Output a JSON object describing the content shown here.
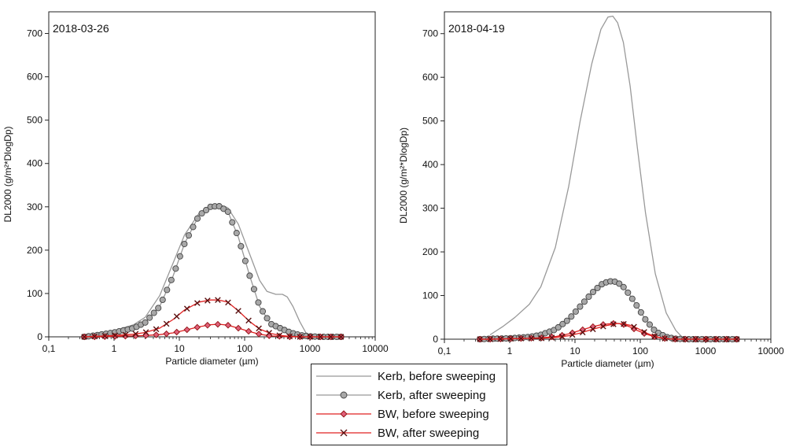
{
  "chart_data": [
    {
      "type": "line",
      "panel_label": "2018-03-26",
      "xlabel": "Particle diameter (µm)",
      "ylabel": "DL2000 (g/m²*DlogDp)",
      "xscale": "log",
      "xlim": [
        0.1,
        10000
      ],
      "ylim": [
        0,
        750
      ],
      "x_ticks": [
        "0,1",
        "1",
        "10",
        "100",
        "1000",
        "10000"
      ],
      "y_ticks": [
        "0",
        "100",
        "200",
        "300",
        "400",
        "500",
        "600",
        "700"
      ],
      "series": [
        {
          "name": "Kerb, before sweeping",
          "x": [
            0.35,
            0.5,
            1,
            2,
            3,
            5,
            8,
            12,
            20,
            30,
            40,
            55,
            80,
            120,
            170,
            220,
            300,
            380,
            450,
            550,
            700,
            900,
            1000,
            1200
          ],
          "y": [
            0,
            5,
            14,
            28,
            45,
            95,
            170,
            235,
            285,
            302,
            305,
            298,
            260,
            190,
            130,
            105,
            98,
            98,
            92,
            70,
            35,
            5,
            0,
            0
          ]
        },
        {
          "name": "Kerb, after sweeping",
          "x": [
            0.35,
            0.5,
            1,
            2,
            3,
            5,
            8,
            12,
            20,
            30,
            40,
            55,
            80,
            120,
            170,
            250,
            350,
            500,
            700,
            1000,
            1500,
            2000,
            3000
          ],
          "y": [
            0,
            3,
            10,
            20,
            33,
            70,
            140,
            215,
            280,
            300,
            302,
            290,
            230,
            140,
            70,
            30,
            20,
            10,
            4,
            1,
            0,
            0,
            0
          ]
        },
        {
          "name": "BW, before sweeping",
          "x": [
            0.35,
            0.5,
            1,
            2,
            3,
            5,
            8,
            12,
            20,
            30,
            40,
            55,
            80,
            120,
            170,
            250,
            350,
            500,
            700,
            1000,
            1500,
            2000,
            3000
          ],
          "y": [
            0,
            0,
            1,
            2,
            3,
            5,
            9,
            15,
            23,
            28,
            29,
            27,
            20,
            12,
            6,
            2,
            1,
            0,
            0,
            0,
            0,
            0,
            0
          ]
        },
        {
          "name": "BW, after sweeping",
          "x": [
            0.35,
            0.5,
            1,
            2,
            3,
            5,
            8,
            12,
            20,
            30,
            40,
            55,
            80,
            120,
            170,
            250,
            350,
            500,
            700,
            1000,
            1500,
            2000,
            3000
          ],
          "y": [
            0,
            1,
            3,
            6,
            10,
            20,
            40,
            62,
            80,
            85,
            85,
            80,
            60,
            35,
            18,
            8,
            3,
            1,
            0,
            0,
            0,
            0,
            0
          ]
        }
      ]
    },
    {
      "type": "line",
      "panel_label": "2018-04-19",
      "xlabel": "Particle diameter (µm)",
      "ylabel": "DL2000 (g/m²*DlogDp)",
      "xscale": "log",
      "xlim": [
        0.1,
        10000
      ],
      "ylim": [
        0,
        750
      ],
      "x_ticks": [
        "0,1",
        "1",
        "10",
        "100",
        "1000",
        "10000"
      ],
      "y_ticks": [
        "0",
        "100",
        "200",
        "300",
        "400",
        "500",
        "600",
        "700"
      ],
      "series": [
        {
          "name": "Kerb, before sweeping",
          "x": [
            0.5,
            0.8,
            1.2,
            2,
            3,
            5,
            8,
            12,
            18,
            25,
            32,
            38,
            45,
            55,
            70,
            90,
            120,
            170,
            250,
            350,
            450,
            500
          ],
          "y": [
            10,
            30,
            50,
            80,
            120,
            210,
            350,
            500,
            630,
            710,
            738,
            740,
            725,
            680,
            580,
            440,
            290,
            150,
            60,
            20,
            3,
            0
          ]
        },
        {
          "name": "Kerb, after sweeping",
          "x": [
            0.35,
            0.5,
            1,
            2,
            3,
            5,
            8,
            12,
            18,
            25,
            32,
            38,
            45,
            55,
            70,
            90,
            120,
            170,
            250,
            350,
            500,
            700,
            1000,
            1500,
            2000,
            3000
          ],
          "y": [
            0,
            1,
            2,
            5,
            10,
            22,
            45,
            75,
            105,
            125,
            132,
            133,
            130,
            120,
            100,
            75,
            45,
            18,
            5,
            1,
            0,
            0,
            0,
            0,
            0,
            0
          ]
        },
        {
          "name": "BW, before sweeping",
          "x": [
            0.35,
            0.5,
            1,
            2,
            3,
            5,
            8,
            12,
            18,
            25,
            32,
            38,
            45,
            55,
            70,
            90,
            120,
            170,
            250,
            350,
            500,
            700,
            1000,
            1500,
            2000,
            3000
          ],
          "y": [
            0,
            0,
            1,
            2,
            3,
            6,
            12,
            20,
            28,
            33,
            35,
            36,
            36,
            34,
            28,
            20,
            12,
            5,
            1,
            0,
            0,
            0,
            0,
            0,
            0,
            0
          ]
        },
        {
          "name": "BW, after sweeping",
          "x": [
            0.35,
            0.5,
            1,
            2,
            3,
            5,
            8,
            12,
            18,
            25,
            32,
            38,
            45,
            55,
            70,
            90,
            120,
            170,
            250,
            350,
            500,
            700,
            1000,
            1500,
            2000,
            3000
          ],
          "y": [
            0,
            0,
            1,
            2,
            2,
            4,
            8,
            14,
            22,
            28,
            32,
            34,
            36,
            35,
            32,
            25,
            15,
            6,
            1,
            0,
            0,
            0,
            0,
            0,
            0,
            0
          ]
        }
      ]
    }
  ],
  "legend": {
    "items": [
      {
        "label": "Kerb, before sweeping",
        "marker": "none",
        "color": "#999999"
      },
      {
        "label": "Kerb, after sweeping",
        "marker": "circle",
        "color": "#999999"
      },
      {
        "label": "BW, before sweeping",
        "marker": "diamond",
        "color": "#e02020"
      },
      {
        "label": "BW, after sweeping",
        "marker": "x",
        "color": "#e02020"
      }
    ]
  },
  "colors": {
    "kerb_line": "#999999",
    "kerb_marker_fill": "#a8a8a8",
    "bw_line": "#e02020",
    "bw_diamond_fill": "#e0607a",
    "bw_x_stroke": "#5a1010"
  }
}
